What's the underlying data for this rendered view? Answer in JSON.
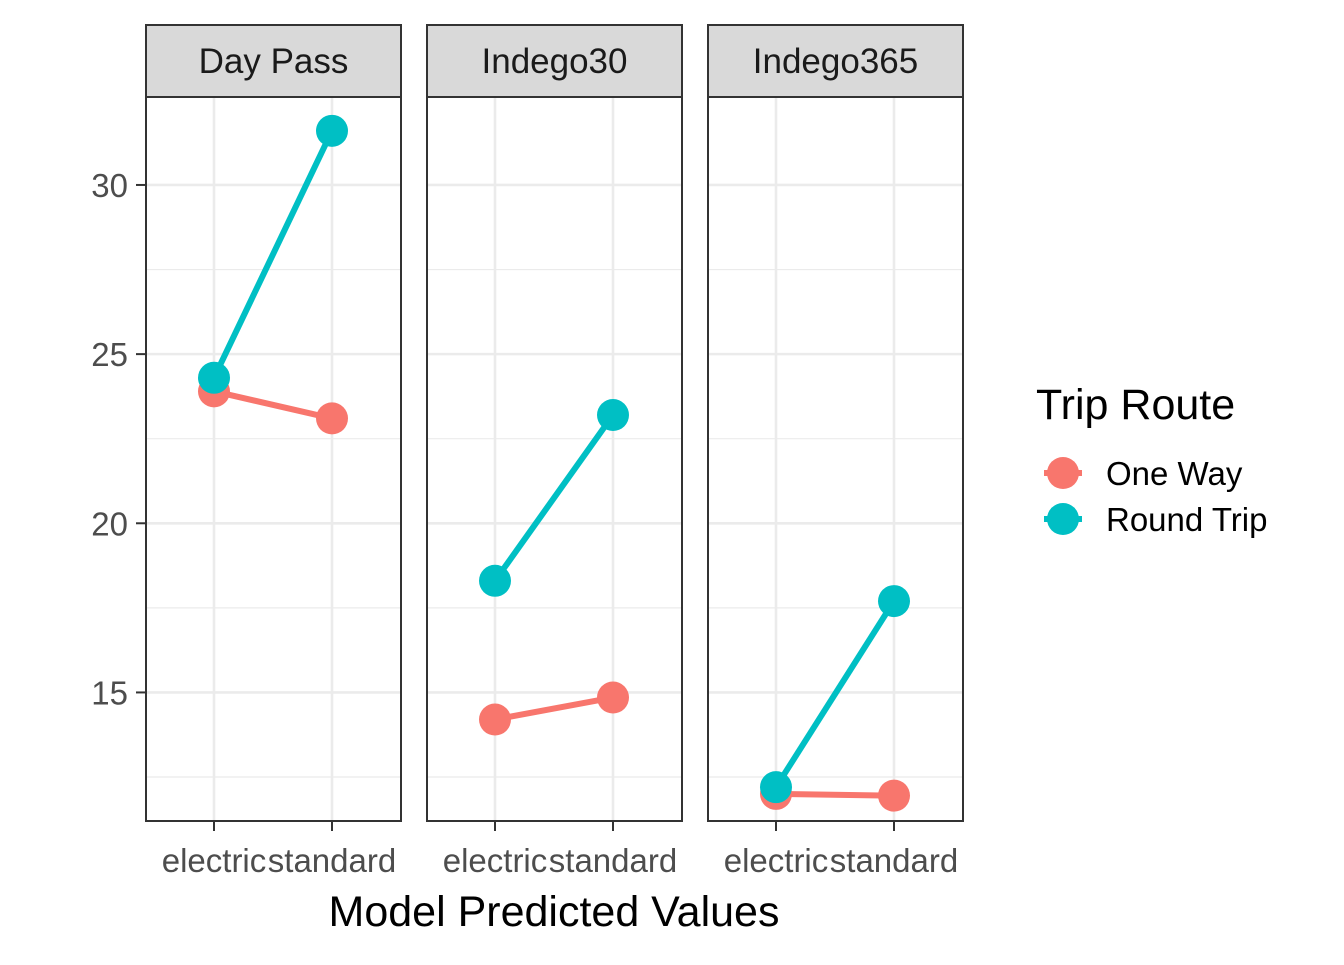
{
  "chart_data": {
    "type": "line",
    "title": "",
    "xlabel": "Model Predicted Values",
    "ylabel": "",
    "ylim": [
      11.2,
      32.6
    ],
    "yticks": [
      15,
      20,
      25,
      30
    ],
    "categories": [
      "electric",
      "standard"
    ],
    "tick_labels": [
      "electric",
      "standard"
    ],
    "facets": [
      {
        "label": "Day Pass",
        "series": [
          {
            "name": "One Way",
            "values": [
              23.9,
              23.1
            ]
          },
          {
            "name": "Round Trip",
            "values": [
              24.3,
              31.6
            ]
          }
        ]
      },
      {
        "label": "Indego30",
        "series": [
          {
            "name": "One Way",
            "values": [
              14.2,
              14.85
            ]
          },
          {
            "name": "Round Trip",
            "values": [
              18.3,
              23.2
            ]
          }
        ]
      },
      {
        "label": "Indego365",
        "series": [
          {
            "name": "One Way",
            "values": [
              12.0,
              11.95
            ]
          },
          {
            "name": "Round Trip",
            "values": [
              12.2,
              17.7
            ]
          }
        ]
      }
    ],
    "legend": {
      "title": "Trip Route",
      "position": "right",
      "entries": [
        "One Way",
        "Round Trip"
      ]
    },
    "colors": {
      "One Way": "#F8766D",
      "Round Trip": "#00BFC4"
    },
    "grid": true
  }
}
